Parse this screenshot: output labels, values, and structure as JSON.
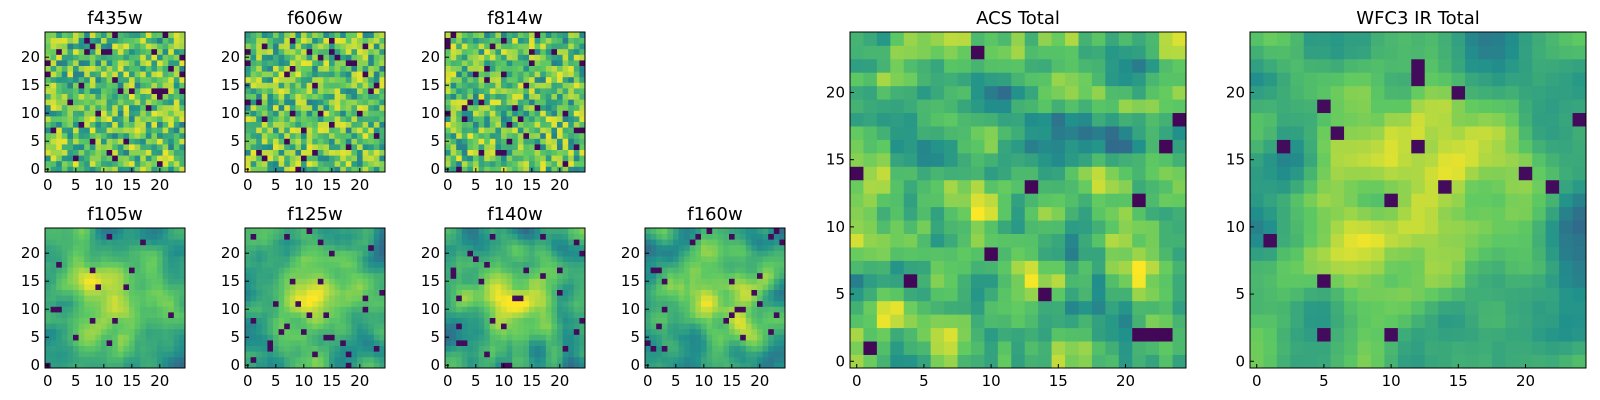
{
  "chart_data": [
    {
      "type": "heatmap",
      "id": "f435w",
      "title": "f435w",
      "mode": "noise",
      "seed": 11,
      "xlim": [
        0,
        25
      ],
      "ylim": [
        0,
        25
      ],
      "xticks": [
        0,
        5,
        10,
        15,
        20
      ],
      "yticks": [
        0,
        5,
        10,
        15,
        20
      ],
      "xtick_labels": [
        "0",
        "5",
        "10",
        "15",
        "20"
      ],
      "ytick_labels": [
        "0",
        "5",
        "10",
        "15",
        "20"
      ]
    },
    {
      "type": "heatmap",
      "id": "f606w",
      "title": "f606w",
      "mode": "noise",
      "seed": 23,
      "xlim": [
        0,
        25
      ],
      "ylim": [
        0,
        25
      ],
      "xticks": [
        0,
        5,
        10,
        15,
        20
      ],
      "yticks": [
        0,
        5,
        10,
        15,
        20
      ],
      "xtick_labels": [
        "0",
        "5",
        "10",
        "15",
        "20"
      ],
      "ytick_labels": [
        "0",
        "5",
        "10",
        "15",
        "20"
      ]
    },
    {
      "type": "heatmap",
      "id": "f814w",
      "title": "f814w",
      "mode": "noise",
      "seed": 37,
      "xlim": [
        0,
        25
      ],
      "ylim": [
        0,
        25
      ],
      "xticks": [
        0,
        5,
        10,
        15,
        20
      ],
      "yticks": [
        0,
        5,
        10,
        15,
        20
      ],
      "xtick_labels": [
        "0",
        "5",
        "10",
        "15",
        "20"
      ],
      "ytick_labels": [
        "0",
        "5",
        "10",
        "15",
        "20"
      ]
    },
    {
      "type": "heatmap",
      "id": "f105w",
      "title": "f105w",
      "mode": "smooth",
      "seed": 41,
      "xlim": [
        0,
        25
      ],
      "ylim": [
        0,
        25
      ],
      "xticks": [
        0,
        5,
        10,
        15,
        20
      ],
      "yticks": [
        0,
        5,
        10,
        15,
        20
      ],
      "xtick_labels": [
        "0",
        "5",
        "10",
        "15",
        "20"
      ],
      "ytick_labels": [
        "0",
        "5",
        "10",
        "15",
        "20"
      ]
    },
    {
      "type": "heatmap",
      "id": "f125w",
      "title": "f125w",
      "mode": "smooth",
      "seed": 53,
      "xlim": [
        0,
        25
      ],
      "ylim": [
        0,
        25
      ],
      "xticks": [
        0,
        5,
        10,
        15,
        20
      ],
      "yticks": [
        0,
        5,
        10,
        15,
        20
      ],
      "xtick_labels": [
        "0",
        "5",
        "10",
        "15",
        "20"
      ],
      "ytick_labels": [
        "0",
        "5",
        "10",
        "15",
        "20"
      ]
    },
    {
      "type": "heatmap",
      "id": "f140w",
      "title": "f140w",
      "mode": "smooth",
      "seed": 67,
      "xlim": [
        0,
        25
      ],
      "ylim": [
        0,
        25
      ],
      "xticks": [
        0,
        5,
        10,
        15,
        20
      ],
      "yticks": [
        0,
        5,
        10,
        15,
        20
      ],
      "xtick_labels": [
        "0",
        "5",
        "10",
        "15",
        "20"
      ],
      "ytick_labels": [
        "0",
        "5",
        "10",
        "15",
        "20"
      ]
    },
    {
      "type": "heatmap",
      "id": "f160w",
      "title": "f160w",
      "mode": "smooth",
      "seed": 79,
      "xlim": [
        0,
        25
      ],
      "ylim": [
        0,
        25
      ],
      "xticks": [
        0,
        5,
        10,
        15,
        20
      ],
      "yticks": [
        0,
        5,
        10,
        15,
        20
      ],
      "xtick_labels": [
        "0",
        "5",
        "10",
        "15",
        "20"
      ],
      "ytick_labels": [
        "0",
        "5",
        "10",
        "15",
        "20"
      ]
    },
    {
      "type": "heatmap",
      "id": "acs-total",
      "title": "ACS Total",
      "mode": "acs",
      "seed": 97,
      "xlim": [
        0,
        25
      ],
      "ylim": [
        0,
        25
      ],
      "xticks": [
        0,
        5,
        10,
        15,
        20
      ],
      "yticks": [
        0,
        5,
        10,
        15,
        20
      ],
      "xtick_labels": [
        "0",
        "5",
        "10",
        "15",
        "20"
      ],
      "ytick_labels": [
        "0",
        "5",
        "10",
        "15",
        "20"
      ]
    },
    {
      "type": "heatmap",
      "id": "wfc3-ir-total",
      "title": "WFC3 IR Total",
      "mode": "ir",
      "seed": 113,
      "xlim": [
        0,
        25
      ],
      "ylim": [
        0,
        25
      ],
      "xticks": [
        0,
        5,
        10,
        15,
        20
      ],
      "yticks": [
        0,
        5,
        10,
        15,
        20
      ],
      "xtick_labels": [
        "0",
        "5",
        "10",
        "15",
        "20"
      ],
      "ytick_labels": [
        "0",
        "5",
        "10",
        "15",
        "20"
      ]
    }
  ],
  "colormap": [
    "#440154",
    "#3b528b",
    "#21918c",
    "#5ec962",
    "#fde725"
  ],
  "colors": {
    "axis": "#000000",
    "background": "#ffffff"
  }
}
